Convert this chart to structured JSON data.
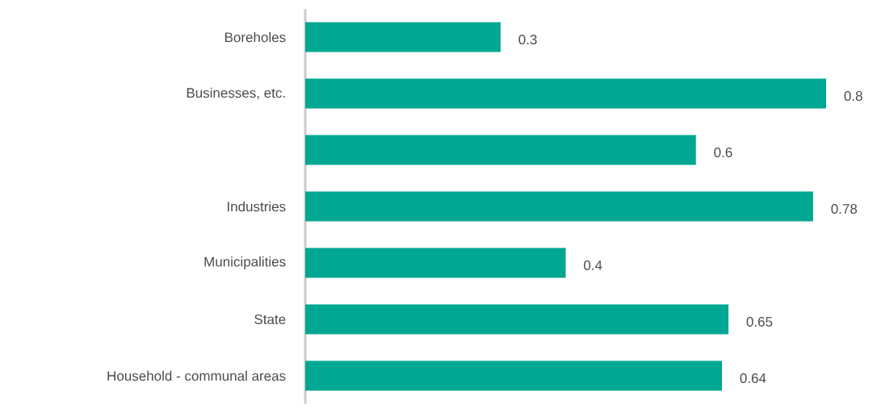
{
  "chart_data": {
    "type": "bar",
    "orientation": "horizontal",
    "categories": [
      "Boreholes",
      "Businesses, etc.",
      null,
      "Industries",
      "Municipalities",
      "State",
      "Household - communal areas"
    ],
    "values": [
      0.3,
      0.8,
      0.6,
      0.78,
      0.4,
      0.65,
      0.64
    ],
    "color": "#00a792",
    "data_labels": true
  }
}
